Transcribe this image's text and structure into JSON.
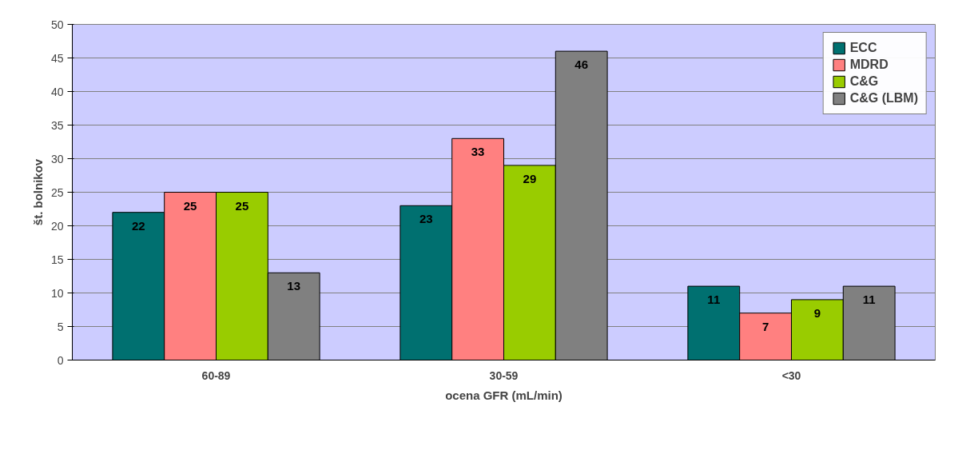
{
  "chart_data": {
    "type": "bar",
    "xlabel": "ocena GFR (mL/min)",
    "ylabel": "št. bolnikov",
    "categories": [
      "60-89",
      "30-59",
      "<30"
    ],
    "series": [
      {
        "name": "ECC",
        "color": "#007070",
        "values": [
          22,
          23,
          11
        ]
      },
      {
        "name": "MDRD",
        "color": "#ff8080",
        "values": [
          25,
          33,
          7
        ]
      },
      {
        "name": "C&G",
        "color": "#99cc00",
        "values": [
          25,
          29,
          9
        ]
      },
      {
        "name": "C&G (LBM)",
        "color": "#808080",
        "values": [
          13,
          46,
          11
        ]
      }
    ],
    "ylim": [
      0,
      50
    ],
    "yticks": [
      0,
      5,
      10,
      15,
      20,
      25,
      30,
      35,
      40,
      45,
      50
    ],
    "grid": "y",
    "legend": "top right",
    "data_labels": true
  }
}
